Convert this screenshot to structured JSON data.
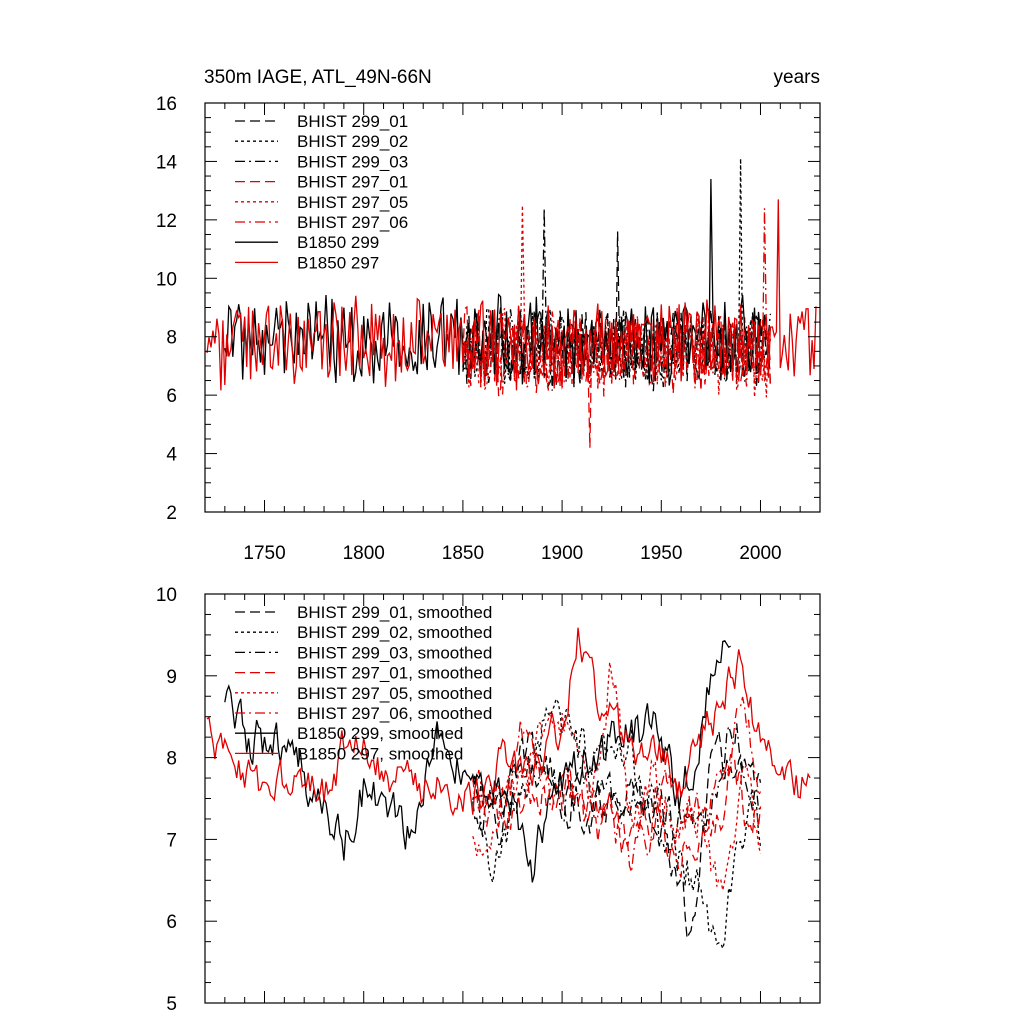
{
  "chart_data": [
    {
      "type": "line",
      "title": "350m IAGE, ATL_49N-66N",
      "units": "years",
      "xlim": [
        1720,
        2030
      ],
      "ylim": [
        2,
        16
      ],
      "xticks": [
        1750,
        1800,
        1850,
        1900,
        1950,
        2000
      ],
      "yticks": [
        2,
        4,
        6,
        8,
        10,
        12,
        14,
        16
      ],
      "show_x_tick_labels": true,
      "legend": [
        {
          "label": "BHIST 299_01",
          "color": "#000000",
          "dash": "dash"
        },
        {
          "label": "BHIST 299_02",
          "color": "#000000",
          "dash": "dot"
        },
        {
          "label": "BHIST 299_03",
          "color": "#000000",
          "dash": "dashdot"
        },
        {
          "label": "BHIST 297_01",
          "color": "#e00000",
          "dash": "dash"
        },
        {
          "label": "BHIST 297_05",
          "color": "#e00000",
          "dash": "dot"
        },
        {
          "label": "BHIST 297_06",
          "color": "#e00000",
          "dash": "dashdot"
        },
        {
          "label": "B1850 299",
          "color": "#000000",
          "dash": "solid"
        },
        {
          "label": "B1850 297",
          "color": "#e00000",
          "dash": "solid"
        }
      ],
      "series": [
        {
          "name": "BHIST 299_01",
          "start": 1850,
          "end": 2005,
          "mean": 7.6,
          "amp": 1.2,
          "spike": [
            1928,
            11.6
          ],
          "color": "#000000",
          "dash": "dash"
        },
        {
          "name": "BHIST 299_02",
          "start": 1850,
          "end": 2005,
          "mean": 7.6,
          "amp": 1.2,
          "spike": [
            1990,
            14.1
          ],
          "color": "#000000",
          "dash": "dot"
        },
        {
          "name": "BHIST 299_03",
          "start": 1850,
          "end": 2005,
          "mean": 7.6,
          "amp": 1.2,
          "spike": [
            1891,
            12.4
          ],
          "color": "#000000",
          "dash": "dashdot"
        },
        {
          "name": "BHIST 297_01",
          "start": 1850,
          "end": 2005,
          "mean": 7.5,
          "amp": 1.2,
          "spike": [
            1914,
            4.2
          ],
          "color": "#e00000",
          "dash": "dash"
        },
        {
          "name": "BHIST 297_05",
          "start": 1850,
          "end": 2005,
          "mean": 7.4,
          "amp": 1.2,
          "spike": [
            1880,
            12.5
          ],
          "color": "#e00000",
          "dash": "dot"
        },
        {
          "name": "BHIST 297_06",
          "start": 1850,
          "end": 2005,
          "mean": 7.5,
          "amp": 1.2,
          "spike": [
            2002,
            12.4
          ],
          "color": "#e00000",
          "dash": "dashdot"
        },
        {
          "name": "B1850 299",
          "start": 1730,
          "end": 2000,
          "mean": 7.9,
          "amp": 1.3,
          "spike": [
            1975,
            13.4
          ],
          "color": "#000000",
          "dash": "solid"
        },
        {
          "name": "B1850 297",
          "start": 1721,
          "end": 2028,
          "mean": 7.8,
          "amp": 1.3,
          "spike": [
            2009,
            12.7
          ],
          "color": "#e00000",
          "dash": "solid"
        }
      ]
    },
    {
      "type": "line",
      "xlim": [
        1720,
        2030
      ],
      "ylim": [
        5,
        10
      ],
      "xticks": [
        1750,
        1800,
        1850,
        1900,
        1950,
        2000
      ],
      "yticks": [
        5,
        6,
        7,
        8,
        9,
        10
      ],
      "show_x_tick_labels": false,
      "legend": [
        {
          "label": "BHIST 299_01, smoothed",
          "color": "#000000",
          "dash": "dash"
        },
        {
          "label": "BHIST 299_02, smoothed",
          "color": "#000000",
          "dash": "dot"
        },
        {
          "label": "BHIST 299_03, smoothed",
          "color": "#000000",
          "dash": "dashdot"
        },
        {
          "label": "BHIST 297_01, smoothed",
          "color": "#e00000",
          "dash": "dash"
        },
        {
          "label": "BHIST 297_05, smoothed",
          "color": "#e00000",
          "dash": "dot"
        },
        {
          "label": "BHIST 297_06, smoothed",
          "color": "#e00000",
          "dash": "dashdot"
        },
        {
          "label": "B1850 299, smoothed",
          "color": "#000000",
          "dash": "solid"
        },
        {
          "label": "B1850 297, smoothed",
          "color": "#e00000",
          "dash": "solid"
        }
      ],
      "series": [
        {
          "name": "BHIST 299_01, smoothed",
          "start": 1855,
          "end": 2000,
          "anchors": [
            [
              1855,
              7.4
            ],
            [
              1870,
              7.2
            ],
            [
              1885,
              8.2
            ],
            [
              1900,
              7.6
            ],
            [
              1915,
              7.4
            ],
            [
              1930,
              7.6
            ],
            [
              1945,
              7.2
            ],
            [
              1955,
              6.9
            ],
            [
              1963,
              5.8
            ],
            [
              1975,
              7.8
            ],
            [
              1990,
              8.0
            ],
            [
              2000,
              7.4
            ]
          ],
          "amp": 0.25,
          "color": "#000000",
          "dash": "dash"
        },
        {
          "name": "BHIST 299_02, smoothed",
          "start": 1855,
          "end": 2000,
          "anchors": [
            [
              1855,
              7.4
            ],
            [
              1866,
              6.5
            ],
            [
              1880,
              7.6
            ],
            [
              1895,
              8.8
            ],
            [
              1905,
              8.1
            ],
            [
              1920,
              7.8
            ],
            [
              1935,
              8.0
            ],
            [
              1950,
              7.0
            ],
            [
              1965,
              6.6
            ],
            [
              1979,
              5.6
            ],
            [
              1990,
              7.0
            ],
            [
              2000,
              7.2
            ]
          ],
          "amp": 0.25,
          "color": "#000000",
          "dash": "dot"
        },
        {
          "name": "BHIST 299_03, smoothed",
          "start": 1855,
          "end": 2000,
          "anchors": [
            [
              1855,
              7.6
            ],
            [
              1870,
              7.4
            ],
            [
              1890,
              8.0
            ],
            [
              1905,
              7.4
            ],
            [
              1920,
              7.6
            ],
            [
              1935,
              7.4
            ],
            [
              1950,
              7.5
            ],
            [
              1965,
              7.0
            ],
            [
              1975,
              7.4
            ],
            [
              1985,
              8.6
            ],
            [
              1995,
              7.8
            ],
            [
              2000,
              7.6
            ]
          ],
          "amp": 0.25,
          "color": "#000000",
          "dash": "dashdot"
        },
        {
          "name": "BHIST 297_01, smoothed",
          "start": 1855,
          "end": 2000,
          "anchors": [
            [
              1855,
              7.6
            ],
            [
              1870,
              7.3
            ],
            [
              1885,
              7.6
            ],
            [
              1900,
              7.6
            ],
            [
              1915,
              7.2
            ],
            [
              1930,
              7.0
            ],
            [
              1945,
              7.3
            ],
            [
              1960,
              7.0
            ],
            [
              1972,
              6.9
            ],
            [
              1985,
              7.8
            ],
            [
              1995,
              7.2
            ],
            [
              2000,
              7.4
            ]
          ],
          "amp": 0.25,
          "color": "#e00000",
          "dash": "dash"
        },
        {
          "name": "BHIST 297_05, smoothed",
          "start": 1855,
          "end": 2000,
          "anchors": [
            [
              1855,
              6.9
            ],
            [
              1870,
              7.6
            ],
            [
              1885,
              8.0
            ],
            [
              1900,
              8.4
            ],
            [
              1915,
              7.6
            ],
            [
              1925,
              9.1
            ],
            [
              1935,
              7.2
            ],
            [
              1945,
              7.8
            ],
            [
              1958,
              7.2
            ],
            [
              1970,
              7.4
            ],
            [
              1980,
              6.2
            ],
            [
              1990,
              7.6
            ],
            [
              2000,
              7.2
            ]
          ],
          "amp": 0.25,
          "color": "#e00000",
          "dash": "dot"
        },
        {
          "name": "BHIST 297_06, smoothed",
          "start": 1855,
          "end": 2000,
          "anchors": [
            [
              1855,
              7.6
            ],
            [
              1868,
              7.4
            ],
            [
              1880,
              8.3
            ],
            [
              1895,
              7.4
            ],
            [
              1910,
              7.6
            ],
            [
              1925,
              7.2
            ],
            [
              1935,
              6.6
            ],
            [
              1950,
              7.6
            ],
            [
              1965,
              7.3
            ],
            [
              1980,
              7.6
            ],
            [
              1990,
              8.6
            ],
            [
              2000,
              7.8
            ]
          ],
          "amp": 0.25,
          "color": "#e00000",
          "dash": "dashdot"
        },
        {
          "name": "B1850 299, smoothed",
          "start": 1730,
          "end": 1985,
          "anchors": [
            [
              1730,
              8.5
            ],
            [
              1745,
              8.2
            ],
            [
              1760,
              8.1
            ],
            [
              1775,
              7.6
            ],
            [
              1790,
              6.9
            ],
            [
              1800,
              7.6
            ],
            [
              1810,
              7.6
            ],
            [
              1825,
              6.9
            ],
            [
              1835,
              8.3
            ],
            [
              1850,
              7.8
            ],
            [
              1865,
              7.8
            ],
            [
              1875,
              7.6
            ],
            [
              1885,
              6.7
            ],
            [
              1900,
              7.6
            ],
            [
              1915,
              8.1
            ],
            [
              1930,
              8.2
            ],
            [
              1945,
              8.4
            ],
            [
              1960,
              7.4
            ],
            [
              1975,
              9.0
            ],
            [
              1985,
              9.4
            ]
          ],
          "amp": 0.25,
          "color": "#000000",
          "dash": "solid"
        },
        {
          "name": "B1850 297, smoothed",
          "start": 1721,
          "end": 2025,
          "anchors": [
            [
              1721,
              8.3
            ],
            [
              1735,
              8.0
            ],
            [
              1750,
              7.6
            ],
            [
              1765,
              7.6
            ],
            [
              1780,
              7.5
            ],
            [
              1795,
              8.4
            ],
            [
              1810,
              7.8
            ],
            [
              1825,
              7.6
            ],
            [
              1840,
              7.7
            ],
            [
              1855,
              7.5
            ],
            [
              1870,
              8.0
            ],
            [
              1885,
              7.8
            ],
            [
              1900,
              8.4
            ],
            [
              1908,
              9.5
            ],
            [
              1920,
              8.6
            ],
            [
              1935,
              8.0
            ],
            [
              1950,
              8.0
            ],
            [
              1960,
              7.6
            ],
            [
              1975,
              8.4
            ],
            [
              1990,
              9.2
            ],
            [
              2000,
              8.1
            ],
            [
              2010,
              7.8
            ],
            [
              2020,
              7.6
            ],
            [
              2025,
              8.0
            ]
          ],
          "amp": 0.22,
          "color": "#e00000",
          "dash": "solid"
        }
      ]
    }
  ]
}
